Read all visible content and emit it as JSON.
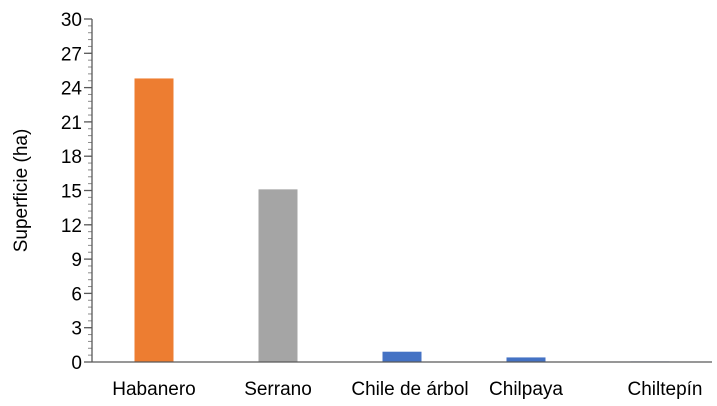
{
  "chart_data": {
    "type": "bar",
    "title": "",
    "xlabel": "",
    "ylabel": "Superficie (ha)",
    "ylim": [
      0,
      30
    ],
    "yticks": [
      0,
      3,
      6,
      9,
      12,
      15,
      18,
      21,
      24,
      27,
      30
    ],
    "grid": false,
    "legend": "none",
    "categories": [
      "Habanero",
      "Serrano",
      "Chile de árbol",
      "Chilpaya",
      "Chiltepín"
    ],
    "values": [
      24.8,
      15.1,
      0.9,
      0.4,
      0.05
    ],
    "colors": [
      "#ED7D31",
      "#A5A5A5",
      "#4472C4",
      "#4472C4",
      "#4472C4"
    ]
  }
}
